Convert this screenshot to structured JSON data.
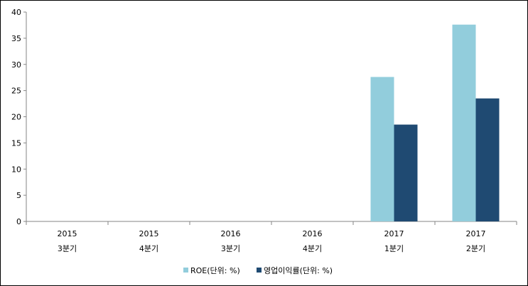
{
  "chart_data": {
    "type": "bar",
    "categories": [
      [
        "2015",
        "3분기"
      ],
      [
        "2015",
        "4분기"
      ],
      [
        "2016",
        "3분기"
      ],
      [
        "2016",
        "4분기"
      ],
      [
        "2017",
        "1분기"
      ],
      [
        "2017",
        "2분기"
      ]
    ],
    "series": [
      {
        "name": "ROE(단위: %)",
        "values": [
          0,
          0,
          0,
          0,
          27.6,
          37.6
        ],
        "color": "#92CDDC"
      },
      {
        "name": "영업이익률(단위: %)",
        "values": [
          0,
          0,
          0,
          0,
          18.5,
          23.5
        ],
        "color": "#1F4A72"
      }
    ],
    "ylim": [
      0,
      40
    ],
    "yticks": [
      0,
      5,
      10,
      15,
      20,
      25,
      30,
      35,
      40
    ],
    "grid": false,
    "legend_position": "bottom",
    "title": "",
    "xlabel": "",
    "ylabel": ""
  }
}
